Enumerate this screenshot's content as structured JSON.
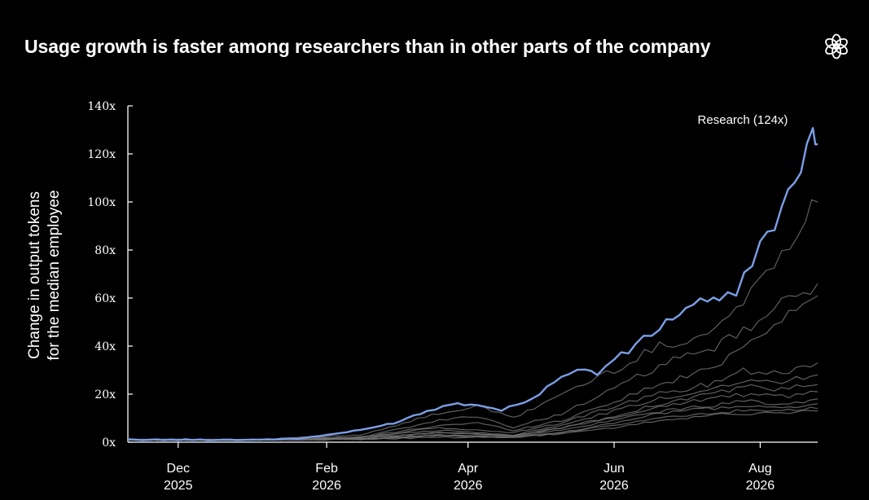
{
  "header": {
    "title": "Usage growth is faster among researchers than in other parts of the company",
    "logo_icon": "openai-logo-icon"
  },
  "colors": {
    "background": "#000000",
    "research_line": "#7b9fe6",
    "other_lines": "#6e6e6e",
    "text": "#ffffff"
  },
  "chart_data": {
    "type": "line",
    "title": "Usage growth is faster among researchers than in other parts of the company",
    "ylabel": [
      "Change in output tokens",
      "for the median employee"
    ],
    "xlabel": "",
    "ylim": [
      0,
      140
    ],
    "xlim": [
      "2025-11-10",
      "2026-08-25"
    ],
    "yticks": [
      0,
      20,
      40,
      60,
      80,
      100,
      120,
      140
    ],
    "ytick_labels": [
      "0x",
      "20x",
      "40x",
      "60x",
      "80x",
      "100x",
      "120x",
      "140x"
    ],
    "xticks": [
      {
        "date": "2025-12-01",
        "month": "Dec",
        "year": "2025"
      },
      {
        "date": "2026-02-01",
        "month": "Feb",
        "year": "2026"
      },
      {
        "date": "2026-04-01",
        "month": "Apr",
        "year": "2026"
      },
      {
        "date": "2026-06-01",
        "month": "Jun",
        "year": "2026"
      },
      {
        "date": "2026-08-01",
        "month": "Aug",
        "year": "2026"
      }
    ],
    "grid": false,
    "annotation": "Research (124x)",
    "series": [
      {
        "name": "Research",
        "highlight": true,
        "points": [
          [
            "2025-11-10",
            1
          ],
          [
            "2025-12-01",
            1
          ],
          [
            "2026-01-01",
            1
          ],
          [
            "2026-01-20",
            1.5
          ],
          [
            "2026-02-01",
            3
          ],
          [
            "2026-02-15",
            5
          ],
          [
            "2026-03-01",
            8
          ],
          [
            "2026-03-15",
            13
          ],
          [
            "2026-03-25",
            16
          ],
          [
            "2026-04-05",
            16
          ],
          [
            "2026-04-15",
            13
          ],
          [
            "2026-05-01",
            20
          ],
          [
            "2026-05-10",
            28
          ],
          [
            "2026-05-20",
            30
          ],
          [
            "2026-05-25",
            29
          ],
          [
            "2026-06-01",
            34
          ],
          [
            "2026-06-10",
            40
          ],
          [
            "2026-06-20",
            48
          ],
          [
            "2026-07-01",
            56
          ],
          [
            "2026-07-10",
            60
          ],
          [
            "2026-07-15",
            58
          ],
          [
            "2026-07-22",
            62
          ],
          [
            "2026-08-01",
            82
          ],
          [
            "2026-08-10",
            97
          ],
          [
            "2026-08-18",
            112
          ],
          [
            "2026-08-23",
            127
          ],
          [
            "2026-08-25",
            124
          ]
        ]
      },
      {
        "points": [
          [
            "2025-11-10",
            1
          ],
          [
            "2026-01-01",
            1
          ],
          [
            "2026-02-15",
            3
          ],
          [
            "2026-03-20",
            12
          ],
          [
            "2026-04-05",
            15
          ],
          [
            "2026-04-20",
            10
          ],
          [
            "2026-05-10",
            20
          ],
          [
            "2026-06-01",
            30
          ],
          [
            "2026-06-20",
            40
          ],
          [
            "2026-07-10",
            45
          ],
          [
            "2026-07-25",
            58
          ],
          [
            "2026-08-10",
            80
          ],
          [
            "2026-08-20",
            94
          ],
          [
            "2026-08-25",
            100
          ]
        ]
      },
      {
        "points": [
          [
            "2025-11-10",
            1
          ],
          [
            "2026-01-01",
            1
          ],
          [
            "2026-02-15",
            2
          ],
          [
            "2026-03-20",
            9
          ],
          [
            "2026-04-05",
            11
          ],
          [
            "2026-04-20",
            6
          ],
          [
            "2026-05-10",
            12
          ],
          [
            "2026-06-01",
            22
          ],
          [
            "2026-06-20",
            32
          ],
          [
            "2026-07-10",
            38
          ],
          [
            "2026-07-25",
            46
          ],
          [
            "2026-08-10",
            57
          ],
          [
            "2026-08-25",
            66
          ]
        ]
      },
      {
        "points": [
          [
            "2025-11-10",
            1
          ],
          [
            "2026-01-01",
            1
          ],
          [
            "2026-02-15",
            2
          ],
          [
            "2026-03-20",
            7
          ],
          [
            "2026-04-05",
            8
          ],
          [
            "2026-04-20",
            5
          ],
          [
            "2026-05-10",
            9
          ],
          [
            "2026-06-01",
            17
          ],
          [
            "2026-06-20",
            24
          ],
          [
            "2026-07-10",
            30
          ],
          [
            "2026-07-25",
            40
          ],
          [
            "2026-08-10",
            52
          ],
          [
            "2026-08-25",
            61
          ]
        ]
      },
      {
        "points": [
          [
            "2025-11-10",
            1
          ],
          [
            "2026-01-01",
            1
          ],
          [
            "2026-02-15",
            2
          ],
          [
            "2026-03-20",
            6
          ],
          [
            "2026-04-20",
            4
          ],
          [
            "2026-05-10",
            8
          ],
          [
            "2026-06-01",
            15
          ],
          [
            "2026-06-20",
            20
          ],
          [
            "2026-07-10",
            24
          ],
          [
            "2026-07-25",
            30
          ],
          [
            "2026-08-10",
            29
          ],
          [
            "2026-08-25",
            33
          ]
        ]
      },
      {
        "points": [
          [
            "2025-11-10",
            1
          ],
          [
            "2026-01-01",
            1
          ],
          [
            "2026-02-15",
            2
          ],
          [
            "2026-03-20",
            5
          ],
          [
            "2026-04-20",
            3
          ],
          [
            "2026-05-10",
            7
          ],
          [
            "2026-06-01",
            13
          ],
          [
            "2026-06-20",
            18
          ],
          [
            "2026-07-10",
            22
          ],
          [
            "2026-07-25",
            26
          ],
          [
            "2026-08-10",
            25
          ],
          [
            "2026-08-25",
            28
          ]
        ]
      },
      {
        "points": [
          [
            "2025-11-10",
            1
          ],
          [
            "2026-01-01",
            1
          ],
          [
            "2026-02-15",
            1.5
          ],
          [
            "2026-03-20",
            4
          ],
          [
            "2026-04-20",
            3
          ],
          [
            "2026-05-10",
            6
          ],
          [
            "2026-06-01",
            11
          ],
          [
            "2026-06-20",
            16
          ],
          [
            "2026-07-10",
            20
          ],
          [
            "2026-07-25",
            23
          ],
          [
            "2026-08-10",
            22
          ],
          [
            "2026-08-25",
            24
          ]
        ]
      },
      {
        "points": [
          [
            "2025-11-10",
            1
          ],
          [
            "2026-01-01",
            1
          ],
          [
            "2026-02-15",
            1.5
          ],
          [
            "2026-03-20",
            4
          ],
          [
            "2026-04-20",
            2.5
          ],
          [
            "2026-05-10",
            6
          ],
          [
            "2026-06-01",
            10
          ],
          [
            "2026-06-20",
            15
          ],
          [
            "2026-07-10",
            18
          ],
          [
            "2026-07-25",
            20
          ],
          [
            "2026-08-10",
            19
          ],
          [
            "2026-08-25",
            21
          ]
        ]
      },
      {
        "points": [
          [
            "2025-11-10",
            1
          ],
          [
            "2026-01-01",
            1
          ],
          [
            "2026-02-15",
            1.5
          ],
          [
            "2026-03-20",
            3
          ],
          [
            "2026-04-20",
            2.5
          ],
          [
            "2026-05-10",
            5
          ],
          [
            "2026-06-01",
            9
          ],
          [
            "2026-06-20",
            13
          ],
          [
            "2026-07-10",
            15
          ],
          [
            "2026-07-25",
            17
          ],
          [
            "2026-08-10",
            16
          ],
          [
            "2026-08-25",
            18
          ]
        ]
      },
      {
        "points": [
          [
            "2025-11-10",
            1
          ],
          [
            "2026-01-01",
            1
          ],
          [
            "2026-02-15",
            1.2
          ],
          [
            "2026-03-20",
            3
          ],
          [
            "2026-04-20",
            2
          ],
          [
            "2026-05-10",
            4
          ],
          [
            "2026-06-01",
            8
          ],
          [
            "2026-06-20",
            12
          ],
          [
            "2026-07-10",
            14
          ],
          [
            "2026-07-25",
            15
          ],
          [
            "2026-08-10",
            14
          ],
          [
            "2026-08-25",
            16
          ]
        ]
      },
      {
        "points": [
          [
            "2025-11-10",
            1
          ],
          [
            "2026-01-01",
            1
          ],
          [
            "2026-02-15",
            1.2
          ],
          [
            "2026-03-20",
            2.5
          ],
          [
            "2026-04-20",
            2
          ],
          [
            "2026-05-10",
            4
          ],
          [
            "2026-06-01",
            7
          ],
          [
            "2026-06-20",
            10
          ],
          [
            "2026-07-10",
            12
          ],
          [
            "2026-07-25",
            13
          ],
          [
            "2026-08-10",
            13
          ],
          [
            "2026-08-25",
            14
          ]
        ]
      },
      {
        "points": [
          [
            "2025-11-10",
            1
          ],
          [
            "2026-01-01",
            1
          ],
          [
            "2026-02-15",
            1.2
          ],
          [
            "2026-03-20",
            2
          ],
          [
            "2026-04-20",
            2
          ],
          [
            "2026-05-10",
            3.5
          ],
          [
            "2026-06-01",
            6
          ],
          [
            "2026-06-20",
            9
          ],
          [
            "2026-07-10",
            11
          ],
          [
            "2026-07-25",
            12
          ],
          [
            "2026-08-10",
            12
          ],
          [
            "2026-08-25",
            13
          ]
        ]
      }
    ]
  }
}
